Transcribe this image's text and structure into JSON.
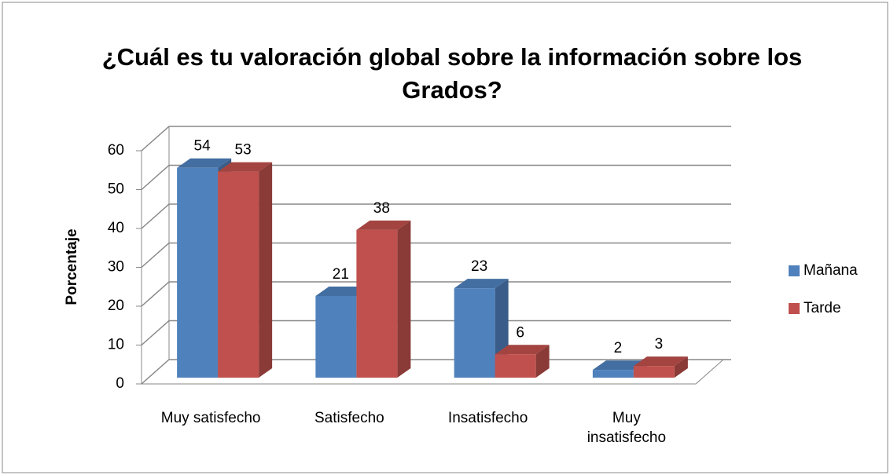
{
  "chart_data": {
    "type": "bar3d",
    "title": "¿Cuál es tu valoración global sobre la información sobre los Grados?",
    "ylabel": "Porcentaje",
    "categories": [
      "Muy satisfecho",
      "Satisfecho",
      "Insatisfecho",
      "Muy\ninsatisfecho"
    ],
    "series": [
      {
        "name": "Mañana",
        "color": "#4f81bd",
        "values": [
          54,
          21,
          23,
          2
        ]
      },
      {
        "name": "Tarde",
        "color": "#c0504d",
        "values": [
          53,
          38,
          6,
          3
        ]
      }
    ],
    "ylim": [
      0,
      60
    ],
    "yticks": [
      0,
      10,
      20,
      30,
      40,
      50,
      60
    ],
    "grid": true,
    "legend": "right"
  }
}
